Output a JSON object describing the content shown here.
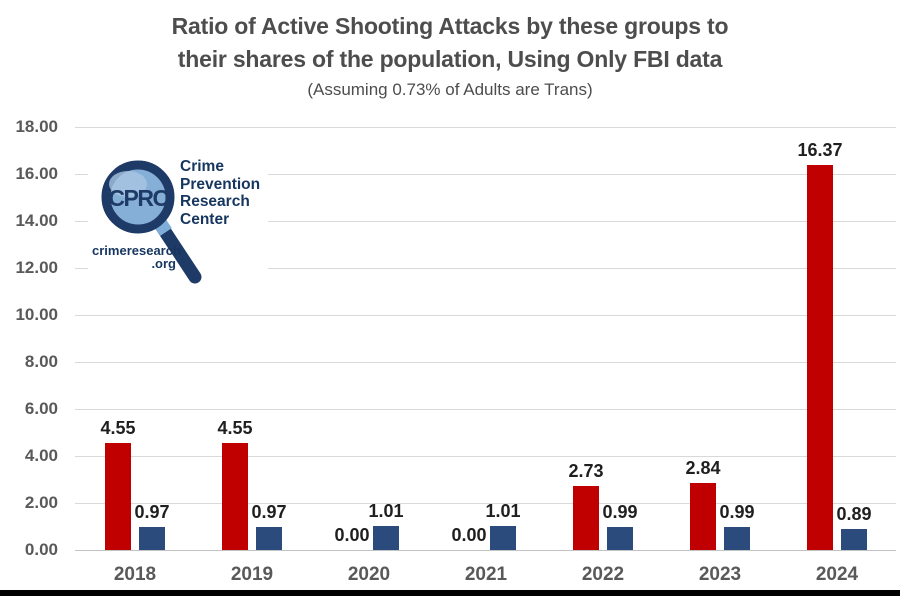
{
  "title": {
    "line1": "Ratio of Active Shooting Attacks by these groups to",
    "line2": "their shares of the population, Using Only FBI data",
    "subtitle": "(Assuming 0.73% of Adults are Trans)"
  },
  "logo": {
    "acronym": "CPRC",
    "name_lines": [
      "Crime",
      "Prevention",
      "Research",
      "Center"
    ],
    "url_line1": "crimeresearch",
    "url_line2": ".org"
  },
  "colors": {
    "red_bar": "#C00000",
    "blue_bar": "#2A4B7C",
    "gridline": "#D9D9D9",
    "axis_text": "#595959",
    "value_text": "#1F1F1F",
    "title_text": "#4D4D4D",
    "logo_navy": "#1E3A66",
    "logo_lens": "#85AFD7",
    "logo_lens_highlight": "#A9C6E4",
    "bottom_border": "#000000"
  },
  "chart_data": {
    "type": "bar",
    "title": "Ratio of Active Shooting Attacks by these groups to their shares of the population, Using Only FBI data",
    "subtitle": "(Assuming 0.73% of Adults are Trans)",
    "categories": [
      "2018",
      "2019",
      "2020",
      "2021",
      "2022",
      "2023",
      "2024"
    ],
    "series": [
      {
        "name": "red-bars",
        "color": "#C00000",
        "values": [
          4.55,
          4.55,
          0.0,
          0.0,
          2.73,
          2.84,
          16.37
        ]
      },
      {
        "name": "blue-bars",
        "color": "#2A4B7C",
        "values": [
          0.97,
          0.97,
          1.01,
          1.01,
          0.99,
          0.99,
          0.89
        ]
      }
    ],
    "value_labels": [
      "4.55",
      "4.55",
      "0.00",
      "0.00",
      "2.73",
      "2.84",
      "16.37",
      "0.97",
      "0.97",
      "1.01",
      "1.01",
      "0.99",
      "0.99",
      "0.89"
    ],
    "ylim": [
      0,
      18
    ],
    "ytick_step": 2,
    "y_ticks": [
      "18.00",
      "16.00",
      "14.00",
      "12.00",
      "10.00",
      "8.00",
      "6.00",
      "4.00",
      "2.00",
      "0.00"
    ],
    "xlabel": "",
    "ylabel": "",
    "grid": true,
    "legend": "none"
  }
}
